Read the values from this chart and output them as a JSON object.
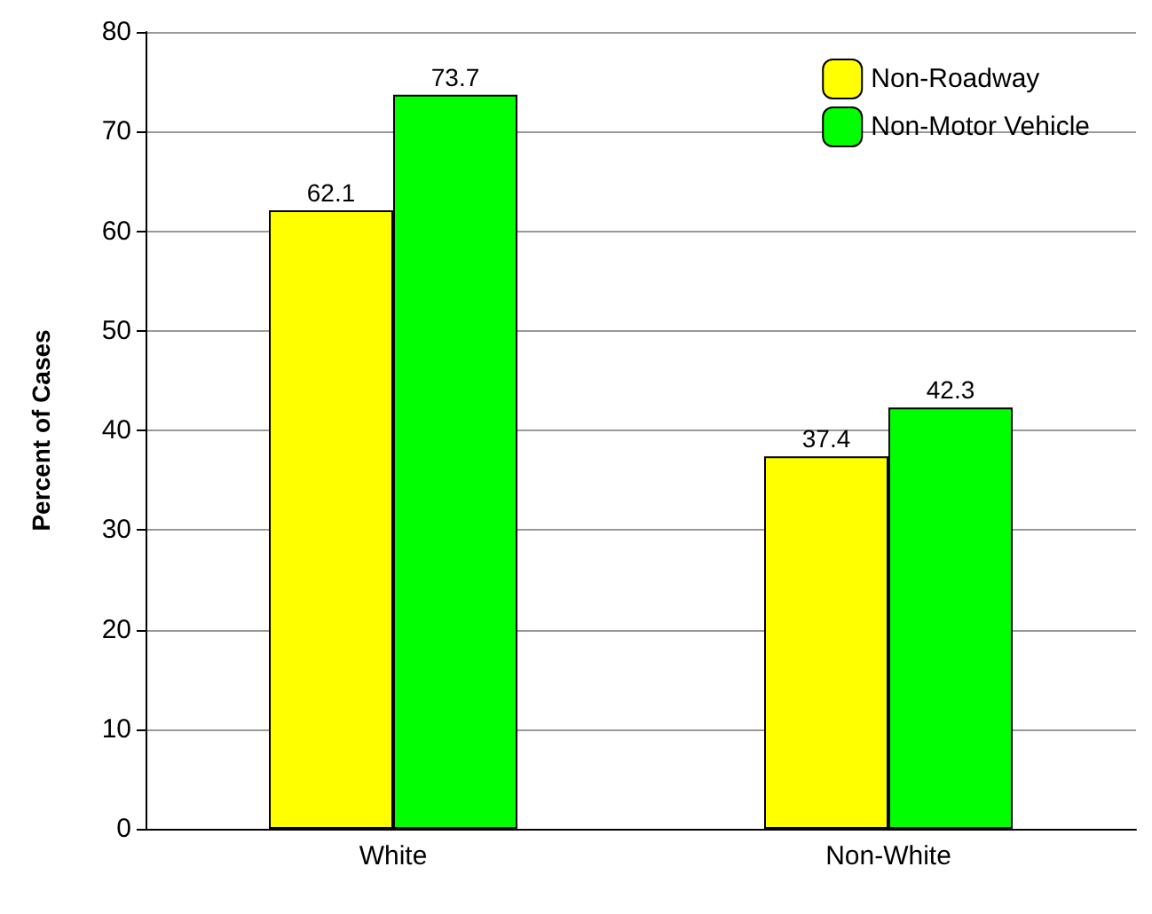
{
  "chart_data": {
    "type": "bar",
    "ylabel": "Percent of Cases",
    "categories": [
      "White",
      "Non-White"
    ],
    "series": [
      {
        "name": "Non-Roadway",
        "color": "#ffff00",
        "values": [
          62.1,
          37.4
        ]
      },
      {
        "name": "Non-Motor Vehicle",
        "color": "#00ff00",
        "values": [
          73.7,
          42.3
        ]
      }
    ],
    "ylim": [
      0,
      80
    ],
    "yticks": [
      0,
      10,
      20,
      30,
      40,
      50,
      60,
      70,
      80
    ],
    "grid": "y",
    "legend": "top right",
    "data_labels": true
  }
}
